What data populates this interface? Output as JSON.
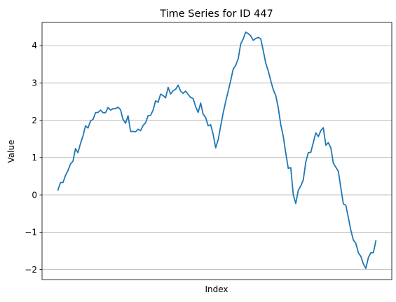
{
  "chart_data": {
    "type": "line",
    "title": "Time Series for ID 447",
    "xlabel": "Index",
    "ylabel": "Value",
    "ylim": [
      -2.27,
      4.62
    ],
    "yticks": [
      -2,
      -1,
      0,
      1,
      2,
      3,
      4
    ],
    "ytick_labels": [
      "−2",
      "−1",
      "0",
      "1",
      "2",
      "3",
      "4"
    ],
    "grid": "y-major",
    "x_ticks_visible": false,
    "series": [
      {
        "color": "#1f77b4",
        "values": [
          0.13,
          0.33,
          0.33,
          0.52,
          0.65,
          0.83,
          0.9,
          1.24,
          1.13,
          1.38,
          1.58,
          1.85,
          1.79,
          1.98,
          2.02,
          2.2,
          2.21,
          2.27,
          2.2,
          2.2,
          2.34,
          2.27,
          2.31,
          2.31,
          2.35,
          2.28,
          2.02,
          1.92,
          2.12,
          1.7,
          1.7,
          1.69,
          1.76,
          1.72,
          1.86,
          1.93,
          2.12,
          2.13,
          2.27,
          2.52,
          2.48,
          2.7,
          2.66,
          2.6,
          2.88,
          2.7,
          2.79,
          2.83,
          2.94,
          2.78,
          2.72,
          2.78,
          2.69,
          2.61,
          2.58,
          2.36,
          2.21,
          2.46,
          2.16,
          2.07,
          1.85,
          1.88,
          1.62,
          1.26,
          1.48,
          1.84,
          2.2,
          2.5,
          2.78,
          3.06,
          3.37,
          3.47,
          3.65,
          4.04,
          4.18,
          4.36,
          4.32,
          4.26,
          4.14,
          4.19,
          4.22,
          4.18,
          3.87,
          3.53,
          3.32,
          3.06,
          2.82,
          2.66,
          2.34,
          1.88,
          1.57,
          1.12,
          0.71,
          0.73,
          0.0,
          -0.23,
          0.12,
          0.24,
          0.4,
          0.88,
          1.13,
          1.14,
          1.4,
          1.66,
          1.56,
          1.72,
          1.8,
          1.33,
          1.4,
          1.26,
          0.85,
          0.74,
          0.63,
          0.19,
          -0.24,
          -0.28,
          -0.61,
          -0.95,
          -1.21,
          -1.3,
          -1.55,
          -1.65,
          -1.85,
          -1.97,
          -1.68,
          -1.55,
          -1.55,
          -1.23
        ]
      }
    ]
  }
}
